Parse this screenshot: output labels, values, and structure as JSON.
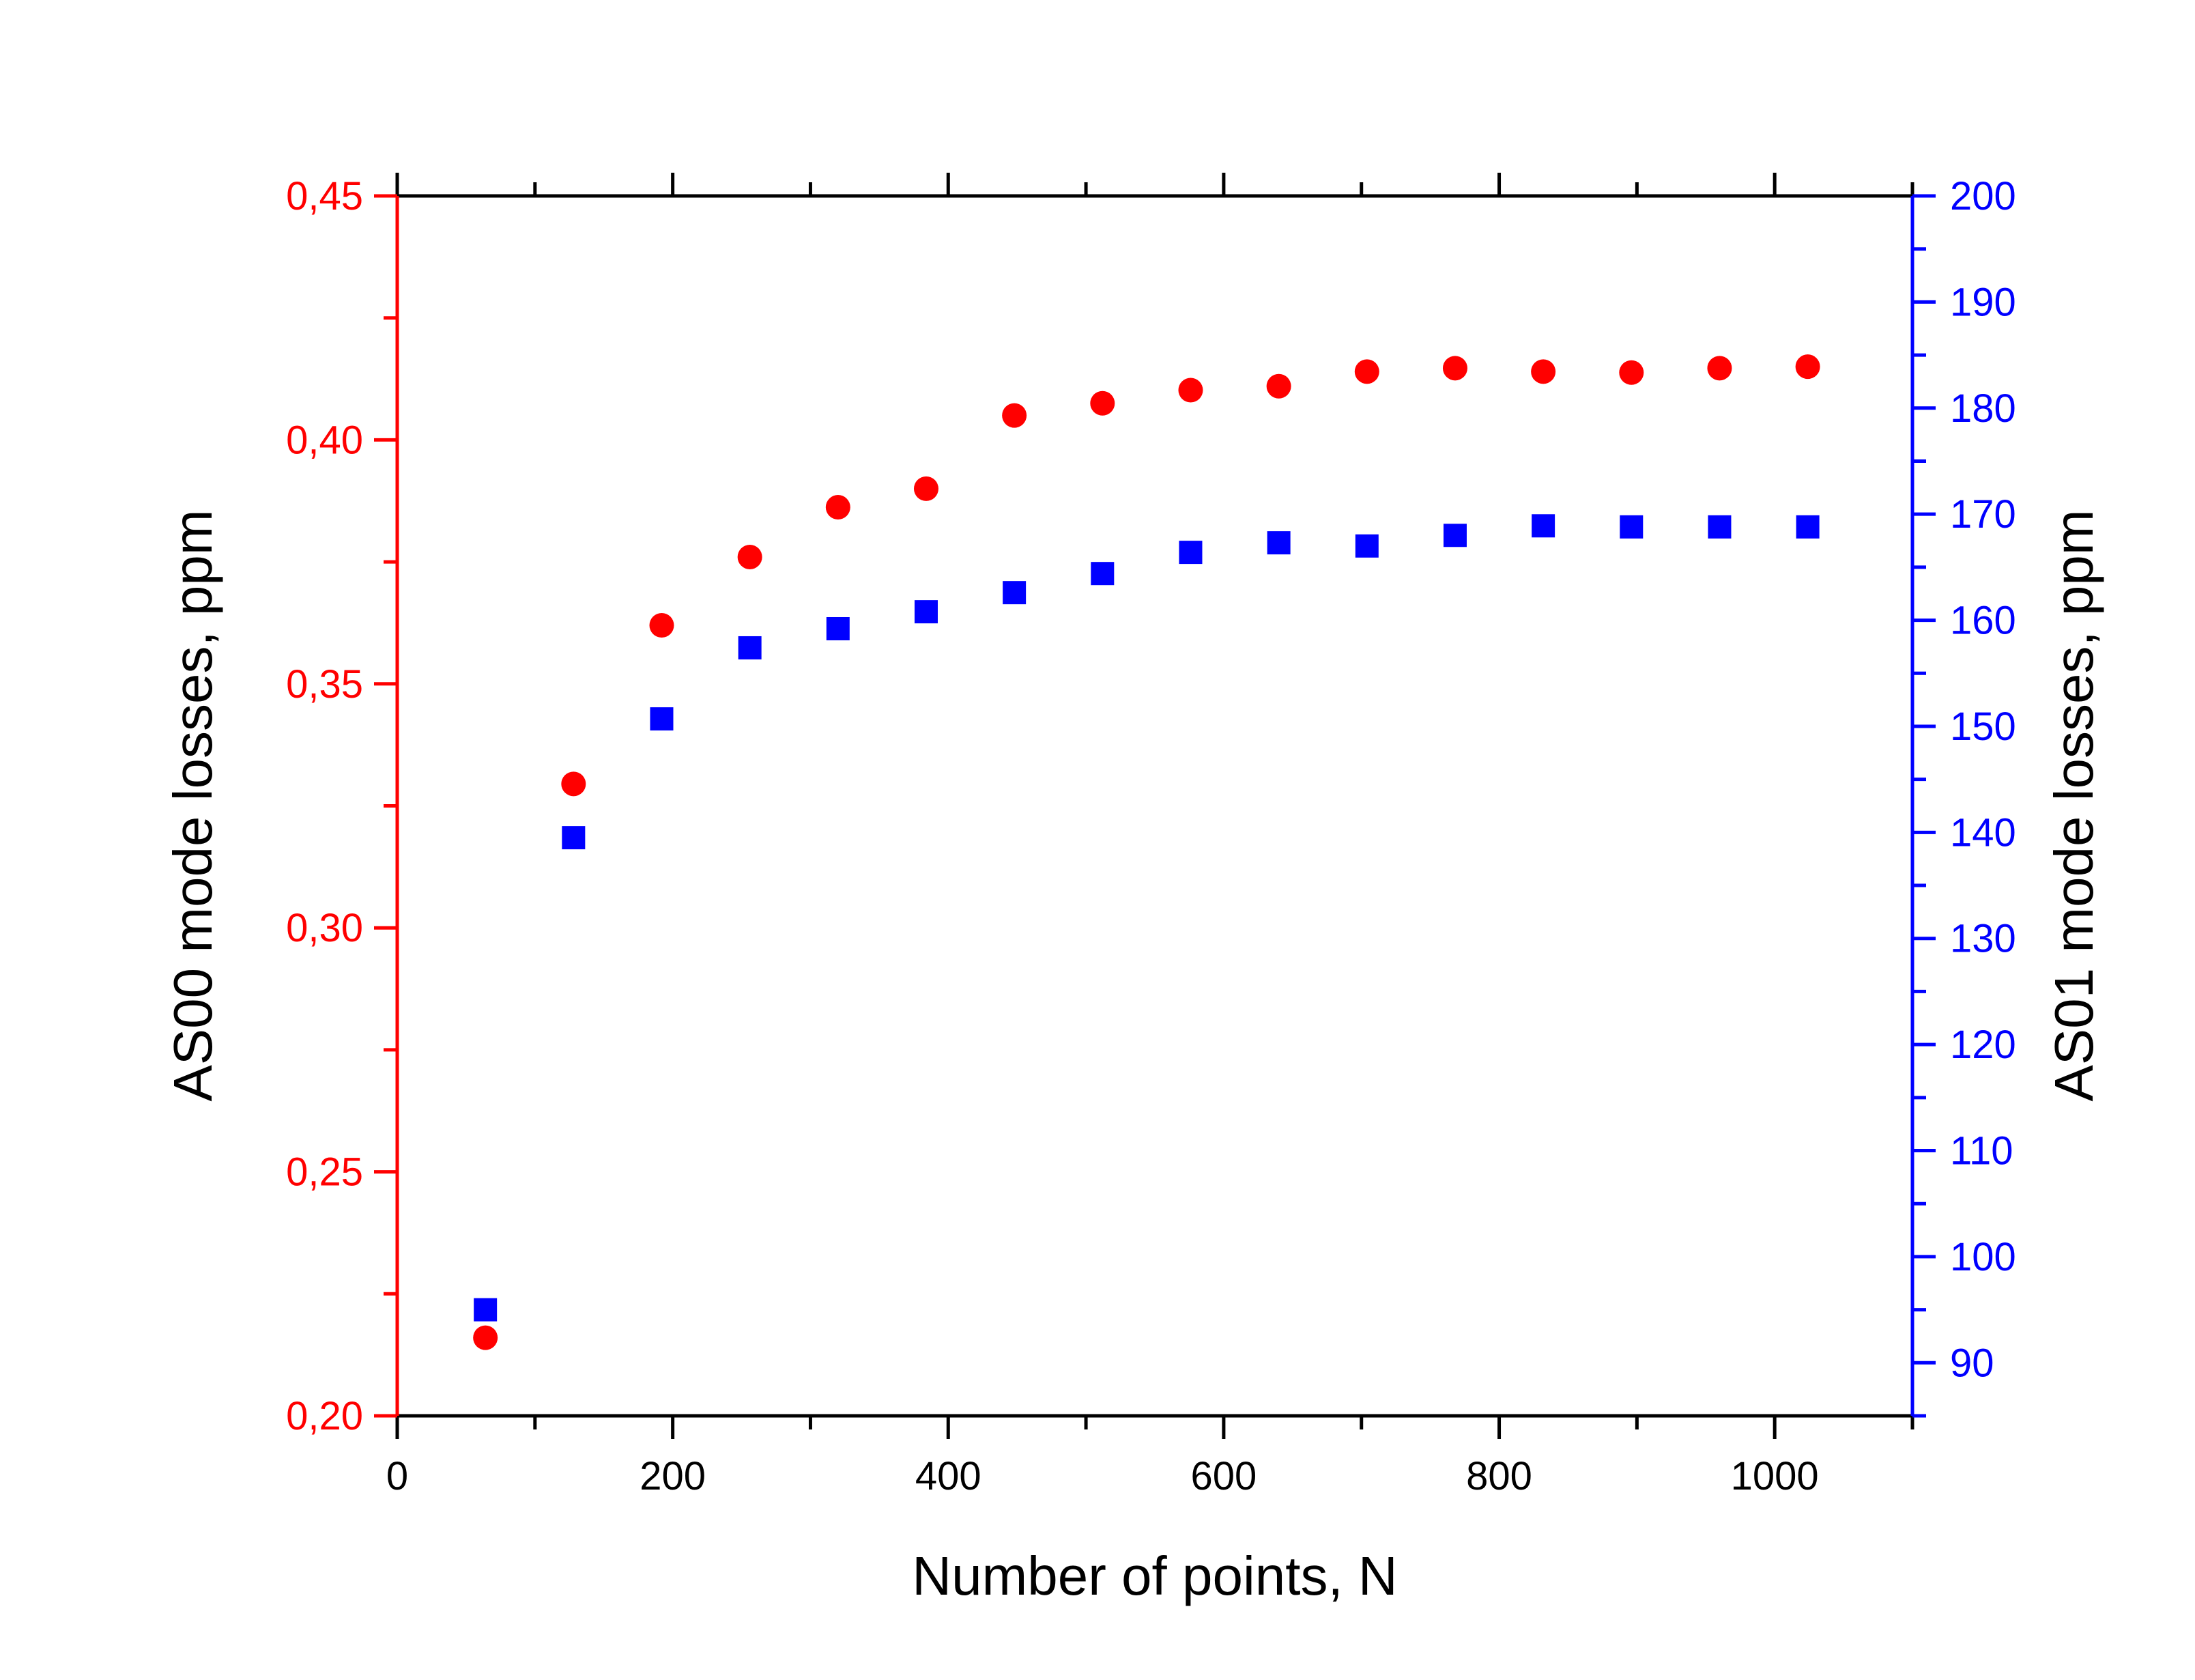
{
  "chart_data": {
    "type": "scatter",
    "title": "",
    "xlabel": "Number of points, N",
    "ylabel_left": "AS00 mode losses, ppm",
    "ylabel_right": "AS01 mode losses, ppm",
    "xlim": [
      0,
      1100
    ],
    "ylim_left": [
      0.2,
      0.45
    ],
    "ylim_right": [
      85,
      200
    ],
    "x_ticks": [
      0,
      200,
      400,
      600,
      800,
      1000
    ],
    "x_tick_labels": [
      "0",
      "200",
      "400",
      "600",
      "800",
      "1000"
    ],
    "y_left_ticks": [
      0.2,
      0.25,
      0.3,
      0.35,
      0.4,
      0.45
    ],
    "y_left_tick_labels": [
      "0,20",
      "0,25",
      "0,30",
      "0,35",
      "0,40",
      "0,45"
    ],
    "y_right_ticks": [
      90,
      100,
      110,
      120,
      130,
      140,
      150,
      160,
      170,
      180,
      190,
      200
    ],
    "y_right_tick_labels": [
      "90",
      "100",
      "110",
      "120",
      "130",
      "140",
      "150",
      "160",
      "170",
      "180",
      "190",
      "200"
    ],
    "grid": false,
    "colors": {
      "left_axis": "#ff0000",
      "right_axis": "#0000ff",
      "frame": "#000000"
    },
    "series": [
      {
        "axis": "left",
        "marker": "circle",
        "color": "#ff0000",
        "x": [
          64,
          128,
          192,
          256,
          320,
          384,
          448,
          512,
          576,
          640,
          704,
          768,
          832,
          896,
          960,
          1024
        ],
        "y": [
          0.216,
          0.3295,
          0.362,
          0.376,
          0.3862,
          0.39,
          0.405,
          0.4075,
          0.4102,
          0.411,
          0.414,
          0.4147,
          0.414,
          0.4138,
          0.4147,
          0.415
        ]
      },
      {
        "axis": "right",
        "marker": "square",
        "color": "#0000ff",
        "x": [
          64,
          128,
          192,
          256,
          320,
          384,
          448,
          512,
          576,
          640,
          704,
          768,
          832,
          896,
          960,
          1024
        ],
        "y": [
          95.0,
          139.5,
          150.7,
          157.4,
          159.2,
          160.8,
          162.6,
          164.4,
          166.4,
          167.3,
          167.0,
          168.0,
          168.9,
          168.8,
          168.8,
          168.8
        ]
      }
    ]
  }
}
